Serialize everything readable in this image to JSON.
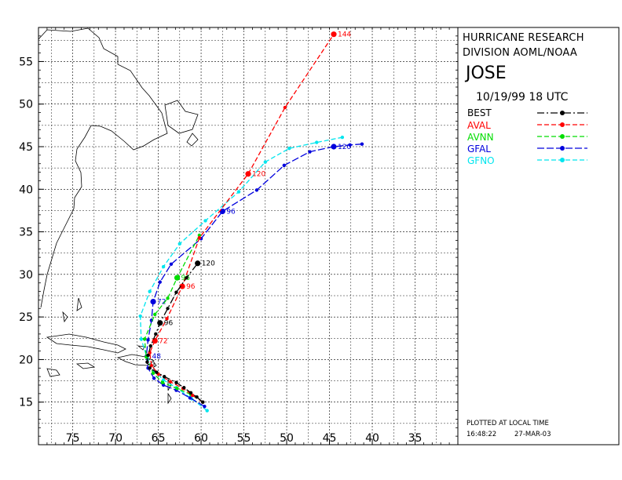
{
  "header": {
    "org_line1": "HURRICANE RESEARCH",
    "org_line2": "DIVISION AOML/NOAA",
    "storm_name": "JOSE",
    "date": "10/19/99 18  UTC"
  },
  "footer": {
    "plotted_label": "PLOTTED AT LOCAL TIME",
    "time": "16:48:22",
    "date": "27-MAR-03"
  },
  "chart_data": {
    "type": "line",
    "title": "JOSE",
    "x_unit": "degrees west longitude",
    "y_unit": "degrees north latitude",
    "xlim": [
      79,
      30
    ],
    "ylim": [
      10,
      59
    ],
    "x_ticks": [
      75,
      70,
      65,
      60,
      55,
      50,
      45,
      40,
      35
    ],
    "y_ticks": [
      15,
      20,
      25,
      30,
      35,
      40,
      45,
      50,
      55
    ],
    "grid": true,
    "legend_placement": "right panel",
    "series": [
      {
        "name": "BEST",
        "color": "#000000",
        "dash": "9 3 2 3",
        "points": [
          [
            59.8,
            15.0
          ],
          [
            60.5,
            15.6
          ],
          [
            61.2,
            16.1
          ],
          [
            62.0,
            16.7
          ],
          [
            62.9,
            17.3
          ],
          [
            64.3,
            18.0
          ],
          [
            65.2,
            18.5
          ],
          [
            66.0,
            19.0
          ],
          [
            66.3,
            19.7
          ],
          [
            66.2,
            20.5
          ],
          [
            65.9,
            21.6
          ],
          [
            65.3,
            23.0
          ],
          [
            64.8,
            24.3
          ],
          [
            63.9,
            26.0
          ],
          [
            62.9,
            27.9
          ],
          [
            61.7,
            29.6
          ],
          [
            60.4,
            31.3
          ]
        ],
        "labels": [
          {
            "text": "96",
            "at": [
              64.8,
              24.3
            ]
          },
          {
            "text": "120",
            "at": [
              60.4,
              31.3
            ]
          }
        ]
      },
      {
        "name": "AVAL",
        "color": "#ff0000",
        "dash": "6 3",
        "points": [
          [
            59.8,
            15.0
          ],
          [
            61.0,
            15.8
          ],
          [
            62.1,
            16.6
          ],
          [
            63.6,
            17.4
          ],
          [
            65.0,
            18.3
          ],
          [
            65.8,
            19.3
          ],
          [
            66.0,
            20.8
          ],
          [
            65.4,
            22.2
          ],
          [
            64.0,
            24.8
          ],
          [
            62.2,
            28.6
          ],
          [
            60.2,
            34.3
          ],
          [
            54.5,
            41.8
          ],
          [
            50.2,
            49.6
          ],
          [
            44.5,
            58.2
          ]
        ],
        "labels": [
          {
            "text": "72",
            "at": [
              65.4,
              22.2
            ]
          },
          {
            "text": "96",
            "at": [
              62.2,
              28.6
            ]
          },
          {
            "text": "120",
            "at": [
              54.5,
              41.8
            ]
          },
          {
            "text": "144",
            "at": [
              44.5,
              58.2
            ]
          }
        ]
      },
      {
        "name": "AVNN",
        "color": "#00dd00",
        "dash": "6 3",
        "points": [
          [
            59.8,
            15.0
          ],
          [
            61.2,
            15.9
          ],
          [
            62.8,
            16.6
          ],
          [
            64.5,
            17.3
          ],
          [
            65.6,
            18.4
          ],
          [
            66.4,
            20.3
          ],
          [
            66.6,
            22.4
          ],
          [
            65.4,
            25.3
          ],
          [
            63.9,
            27.2
          ],
          [
            62.8,
            29.6
          ],
          [
            60.2,
            34.6
          ]
        ],
        "labels": [
          {
            "text": "96",
            "at": [
              62.8,
              29.6
            ]
          }
        ]
      },
      {
        "name": "GFAL",
        "color": "#0000dd",
        "dash": "9 3",
        "points": [
          [
            59.6,
            14.5
          ],
          [
            61.3,
            15.5
          ],
          [
            62.9,
            16.4
          ],
          [
            64.4,
            17.0
          ],
          [
            65.5,
            17.8
          ],
          [
            66.2,
            19.0
          ],
          [
            66.4,
            20.4
          ],
          [
            66.2,
            22.3
          ],
          [
            65.8,
            24.6
          ],
          [
            65.6,
            26.8
          ],
          [
            64.8,
            29.1
          ],
          [
            63.5,
            31.2
          ],
          [
            60.0,
            34.2
          ],
          [
            57.5,
            37.4
          ],
          [
            53.5,
            39.9
          ],
          [
            50.3,
            42.8
          ],
          [
            47.3,
            44.4
          ],
          [
            44.5,
            45.0
          ],
          [
            42.6,
            45.2
          ],
          [
            41.2,
            45.3
          ]
        ],
        "labels": [
          {
            "text": "48",
            "at": [
              66.2,
              20.4
            ]
          },
          {
            "text": "72",
            "at": [
              65.6,
              26.8
            ]
          },
          {
            "text": "96",
            "at": [
              57.5,
              37.4
            ]
          },
          {
            "text": "120",
            "at": [
              44.5,
              45.0
            ]
          }
        ]
      },
      {
        "name": "GFNO",
        "color": "#00e5ee",
        "dash": "6 3",
        "points": [
          [
            59.3,
            14.0
          ],
          [
            61.1,
            15.4
          ],
          [
            62.9,
            16.7
          ],
          [
            64.4,
            17.6
          ],
          [
            65.5,
            18.7
          ],
          [
            66.3,
            20.2
          ],
          [
            67.0,
            22.4
          ],
          [
            67.1,
            25.1
          ],
          [
            66.0,
            28.0
          ],
          [
            64.4,
            30.9
          ],
          [
            62.5,
            33.6
          ],
          [
            59.5,
            36.3
          ],
          [
            55.6,
            39.7
          ],
          [
            52.5,
            43.2
          ],
          [
            49.7,
            44.8
          ],
          [
            46.5,
            45.5
          ],
          [
            43.5,
            46.1
          ]
        ],
        "labels": []
      }
    ]
  }
}
